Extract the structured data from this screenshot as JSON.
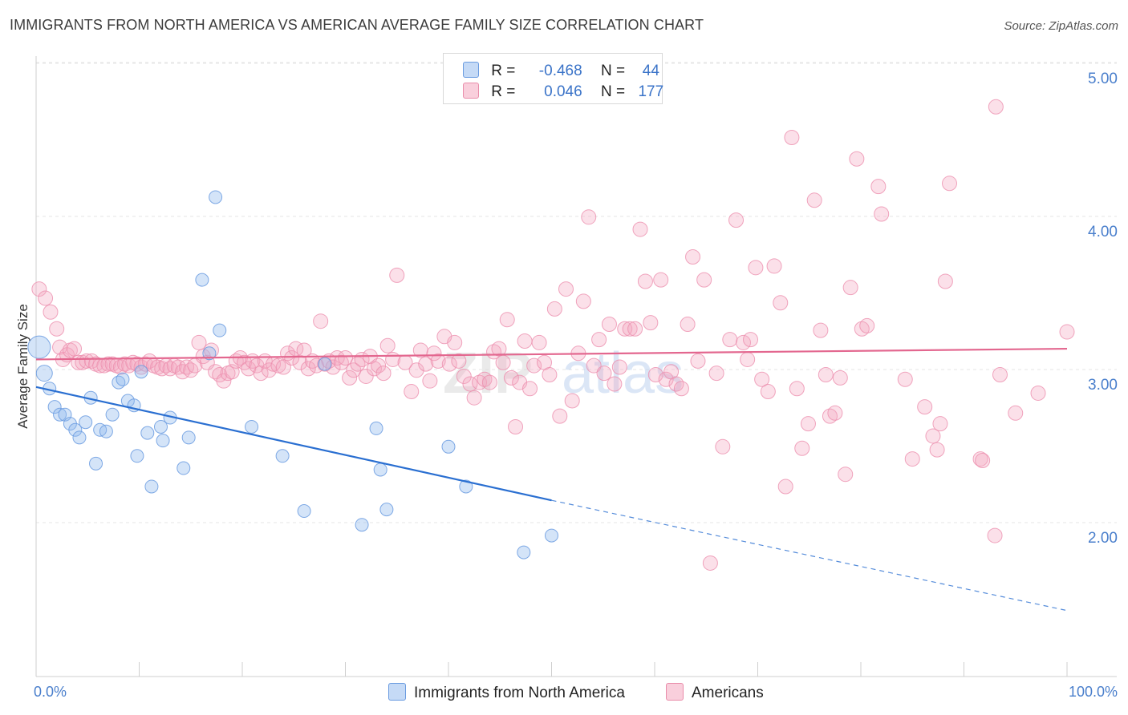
{
  "title": "IMMIGRANTS FROM NORTH AMERICA VS AMERICAN AVERAGE FAMILY SIZE CORRELATION CHART",
  "source": "Source: ZipAtlas.com",
  "watermark": {
    "zip": "ZIP",
    "atlas": "atlas"
  },
  "colors": {
    "blue": "#8fb8ec",
    "blue_line": "#2a6fd1",
    "pink": "#f4a7c0",
    "pink_line": "#e3678f",
    "tick": "#4a7fcc"
  },
  "legend": {
    "rows": [
      {
        "r_label": "R =",
        "r_value": "-0.468",
        "n_label": "N =",
        "n_value": "44"
      },
      {
        "r_label": "R =",
        "r_value": "0.046",
        "n_label": "N =",
        "n_value": "177"
      }
    ]
  },
  "bottom_legend": [
    "Immigrants from North America",
    "Americans"
  ],
  "chart_data": {
    "type": "scatter",
    "title": "IMMIGRANTS FROM NORTH AMERICA VS AMERICAN AVERAGE FAMILY SIZE CORRELATION CHART",
    "xlabel": "",
    "ylabel": "Average Family Size",
    "xlim": [
      0,
      100
    ],
    "ylim": [
      1.0,
      5.1
    ],
    "x_tick_labels": [
      "0.0%",
      "100.0%"
    ],
    "y_ticks": [
      2.0,
      3.0,
      4.0,
      5.0
    ],
    "y_tick_labels": [
      "2.00",
      "3.00",
      "4.00",
      "5.00"
    ],
    "grid": true,
    "legend_placement": "top-center",
    "series": [
      {
        "name": "Immigrants from North America",
        "color": "#8fb8ec",
        "trend": {
          "x": [
            0,
            50
          ],
          "y": [
            2.98,
            2.24
          ],
          "dashed_to": [
            100,
            1.52
          ]
        },
        "points": [
          [
            0.3,
            3.24,
            14
          ],
          [
            0.8,
            3.07,
            10
          ],
          [
            1.3,
            2.97,
            8
          ],
          [
            1.8,
            2.85,
            8
          ],
          [
            2.3,
            2.8,
            8
          ],
          [
            2.8,
            2.8,
            8
          ],
          [
            3.3,
            2.74,
            8
          ],
          [
            3.8,
            2.7,
            8
          ],
          [
            4.2,
            2.65,
            8
          ],
          [
            4.8,
            2.75,
            8
          ],
          [
            5.3,
            2.91,
            8
          ],
          [
            5.8,
            2.48,
            8
          ],
          [
            6.2,
            2.7,
            8
          ],
          [
            6.8,
            2.69,
            8
          ],
          [
            7.4,
            2.8,
            8
          ],
          [
            8.0,
            3.01,
            8
          ],
          [
            8.4,
            3.03,
            8
          ],
          [
            8.9,
            2.89,
            8
          ],
          [
            9.5,
            2.86,
            8
          ],
          [
            9.8,
            2.53,
            8
          ],
          [
            10.2,
            3.08,
            8
          ],
          [
            10.8,
            2.68,
            8
          ],
          [
            11.2,
            2.33,
            8
          ],
          [
            12.1,
            2.72,
            8
          ],
          [
            12.3,
            2.63,
            8
          ],
          [
            13.0,
            2.78,
            8
          ],
          [
            14.3,
            2.45,
            8
          ],
          [
            14.8,
            2.65,
            8
          ],
          [
            16.1,
            3.68,
            8
          ],
          [
            16.8,
            3.2,
            8
          ],
          [
            17.4,
            4.22,
            8
          ],
          [
            17.8,
            3.35,
            8
          ],
          [
            20.9,
            2.72,
            8
          ],
          [
            23.9,
            2.53,
            8
          ],
          [
            26.0,
            2.17,
            8
          ],
          [
            28.0,
            3.13,
            8
          ],
          [
            31.6,
            2.08,
            8
          ],
          [
            33.0,
            2.71,
            8
          ],
          [
            33.4,
            2.44,
            8
          ],
          [
            34.0,
            2.18,
            8
          ],
          [
            40.0,
            2.59,
            8
          ],
          [
            41.7,
            2.33,
            8
          ],
          [
            47.3,
            1.9,
            8
          ],
          [
            50.0,
            2.01,
            8
          ]
        ]
      },
      {
        "name": "Americans",
        "color": "#f4a7c0",
        "trend": {
          "x": [
            0,
            100
          ],
          "y": [
            3.16,
            3.23
          ]
        },
        "points": [
          [
            0.3,
            3.62
          ],
          [
            0.9,
            3.56
          ],
          [
            1.4,
            3.47
          ],
          [
            2.0,
            3.36
          ],
          [
            2.3,
            3.24
          ],
          [
            2.6,
            3.16
          ],
          [
            3.0,
            3.19
          ],
          [
            3.3,
            3.22
          ],
          [
            3.7,
            3.23
          ],
          [
            4.1,
            3.14
          ],
          [
            4.5,
            3.14
          ],
          [
            4.9,
            3.15
          ],
          [
            5.4,
            3.15
          ],
          [
            5.8,
            3.13
          ],
          [
            6.2,
            3.12
          ],
          [
            6.6,
            3.12
          ],
          [
            7.0,
            3.13
          ],
          [
            7.4,
            3.13
          ],
          [
            7.8,
            3.12
          ],
          [
            8.2,
            3.11
          ],
          [
            8.6,
            3.13
          ],
          [
            9.0,
            3.12
          ],
          [
            9.4,
            3.14
          ],
          [
            9.8,
            3.13
          ],
          [
            10.2,
            3.11
          ],
          [
            10.6,
            3.13
          ],
          [
            11.0,
            3.15
          ],
          [
            11.4,
            3.12
          ],
          [
            11.8,
            3.11
          ],
          [
            12.2,
            3.1
          ],
          [
            12.6,
            3.12
          ],
          [
            13.0,
            3.1
          ],
          [
            13.4,
            3.12
          ],
          [
            13.8,
            3.11
          ],
          [
            14.2,
            3.08
          ],
          [
            14.6,
            3.11
          ],
          [
            15.0,
            3.09
          ],
          [
            15.4,
            3.12
          ],
          [
            15.8,
            3.27
          ],
          [
            16.2,
            3.18
          ],
          [
            16.6,
            3.14
          ],
          [
            17.0,
            3.22
          ],
          [
            17.4,
            3.08
          ],
          [
            17.8,
            3.06
          ],
          [
            18.2,
            3.02
          ],
          [
            18.6,
            3.07
          ],
          [
            19.0,
            3.08
          ],
          [
            19.4,
            3.15
          ],
          [
            19.8,
            3.17
          ],
          [
            20.2,
            3.14
          ],
          [
            20.6,
            3.1
          ],
          [
            21.0,
            3.15
          ],
          [
            21.4,
            3.12
          ],
          [
            21.8,
            3.07
          ],
          [
            22.2,
            3.15
          ],
          [
            22.6,
            3.09
          ],
          [
            23.0,
            3.13
          ],
          [
            23.5,
            3.12
          ],
          [
            24.0,
            3.11
          ],
          [
            24.4,
            3.2
          ],
          [
            24.8,
            3.17
          ],
          [
            25.2,
            3.23
          ],
          [
            25.6,
            3.14
          ],
          [
            26.0,
            3.22
          ],
          [
            26.4,
            3.1
          ],
          [
            26.8,
            3.15
          ],
          [
            27.2,
            3.12
          ],
          [
            27.6,
            3.41
          ],
          [
            28.0,
            3.13
          ],
          [
            28.4,
            3.15
          ],
          [
            28.8,
            3.11
          ],
          [
            29.2,
            3.17
          ],
          [
            29.6,
            3.14
          ],
          [
            30.0,
            3.17
          ],
          [
            30.4,
            3.04
          ],
          [
            30.8,
            3.09
          ],
          [
            31.2,
            3.13
          ],
          [
            31.6,
            3.16
          ],
          [
            32.0,
            3.05
          ],
          [
            32.4,
            3.18
          ],
          [
            32.8,
            3.1
          ],
          [
            33.2,
            3.12
          ],
          [
            33.7,
            3.07
          ],
          [
            34.1,
            3.25
          ],
          [
            34.6,
            3.16
          ],
          [
            35.0,
            3.71
          ],
          [
            35.8,
            3.14
          ],
          [
            36.4,
            2.95
          ],
          [
            36.9,
            3.09
          ],
          [
            37.3,
            3.22
          ],
          [
            37.8,
            3.13
          ],
          [
            38.2,
            3.02
          ],
          [
            38.6,
            3.2
          ],
          [
            39.0,
            3.15
          ],
          [
            39.6,
            3.31
          ],
          [
            40.1,
            3.13
          ],
          [
            40.6,
            3.27
          ],
          [
            41.0,
            3.15
          ],
          [
            41.5,
            3.05
          ],
          [
            42.1,
            3.0
          ],
          [
            42.5,
            2.91
          ],
          [
            43.0,
            3.01
          ],
          [
            43.5,
            3.03
          ],
          [
            44.0,
            3.01
          ],
          [
            44.4,
            3.21
          ],
          [
            44.9,
            3.23
          ],
          [
            45.3,
            3.14
          ],
          [
            45.7,
            3.42
          ],
          [
            46.1,
            3.04
          ],
          [
            46.5,
            2.72
          ],
          [
            46.9,
            3.01
          ],
          [
            47.4,
            3.28
          ],
          [
            47.9,
            2.97
          ],
          [
            48.3,
            3.12
          ],
          [
            48.8,
            3.27
          ],
          [
            49.3,
            3.14
          ],
          [
            49.8,
            3.06
          ],
          [
            50.3,
            3.49
          ],
          [
            50.8,
            2.79
          ],
          [
            51.4,
            3.62
          ],
          [
            52.0,
            2.89
          ],
          [
            52.6,
            3.2
          ],
          [
            53.1,
            3.54
          ],
          [
            53.6,
            4.09
          ],
          [
            54.1,
            3.12
          ],
          [
            54.6,
            3.29
          ],
          [
            55.1,
            3.07
          ],
          [
            55.6,
            3.39
          ],
          [
            56.1,
            3.0
          ],
          [
            56.6,
            3.11
          ],
          [
            57.1,
            3.36
          ],
          [
            57.6,
            3.36
          ],
          [
            58.1,
            3.36
          ],
          [
            58.6,
            4.01
          ],
          [
            59.1,
            3.67
          ],
          [
            59.6,
            3.4
          ],
          [
            60.1,
            3.06
          ],
          [
            60.6,
            3.68
          ],
          [
            61.1,
            3.03
          ],
          [
            61.6,
            3.08
          ],
          [
            62.1,
            3.0
          ],
          [
            62.6,
            2.97
          ],
          [
            63.2,
            3.39
          ],
          [
            63.7,
            3.83
          ],
          [
            64.2,
            3.15
          ],
          [
            64.8,
            3.68
          ],
          [
            65.4,
            1.83
          ],
          [
            66.0,
            3.07
          ],
          [
            66.6,
            2.59
          ],
          [
            67.3,
            3.29
          ],
          [
            67.9,
            4.07
          ],
          [
            68.6,
            3.27
          ],
          [
            69.0,
            3.16
          ],
          [
            69.3,
            3.29
          ],
          [
            69.8,
            3.76
          ],
          [
            70.4,
            3.03
          ],
          [
            71.0,
            2.95
          ],
          [
            71.6,
            3.77
          ],
          [
            72.2,
            3.53
          ],
          [
            72.7,
            2.33
          ],
          [
            73.3,
            4.61
          ],
          [
            73.8,
            2.97
          ],
          [
            74.3,
            2.58
          ],
          [
            74.9,
            2.74
          ],
          [
            75.5,
            4.2
          ],
          [
            76.1,
            3.35
          ],
          [
            76.6,
            3.06
          ],
          [
            77.0,
            2.79
          ],
          [
            77.5,
            2.81
          ],
          [
            78.0,
            3.04
          ],
          [
            78.5,
            2.41
          ],
          [
            79.0,
            3.63
          ],
          [
            79.6,
            4.47
          ],
          [
            80.1,
            3.36
          ],
          [
            80.6,
            3.38
          ],
          [
            81.7,
            4.29
          ],
          [
            82.0,
            4.11
          ],
          [
            84.3,
            3.03
          ],
          [
            85.0,
            2.51
          ],
          [
            86.2,
            2.85
          ],
          [
            87.0,
            2.66
          ],
          [
            87.4,
            2.57
          ],
          [
            87.7,
            2.74
          ],
          [
            88.2,
            3.67
          ],
          [
            88.6,
            4.31
          ],
          [
            91.6,
            2.51
          ],
          [
            91.8,
            2.5
          ],
          [
            93.1,
            4.81
          ],
          [
            93.5,
            3.06
          ],
          [
            95.0,
            2.81
          ],
          [
            97.2,
            2.94
          ],
          [
            100.0,
            3.34
          ],
          [
            93.0,
            2.01
          ]
        ]
      }
    ]
  }
}
